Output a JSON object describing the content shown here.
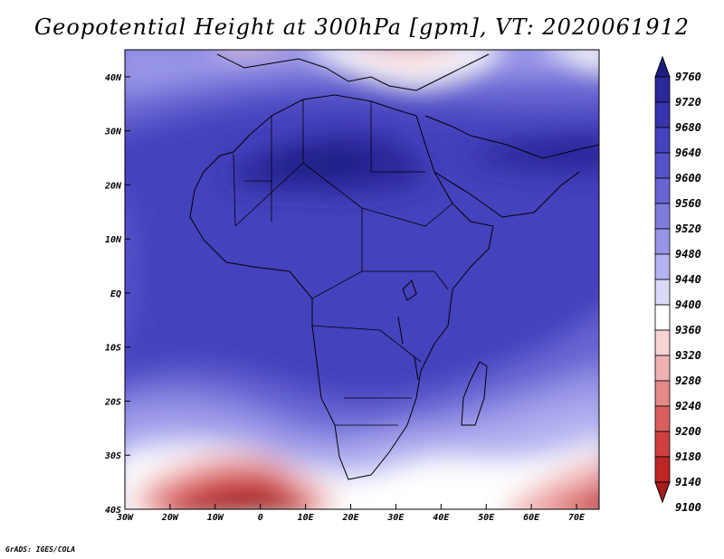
{
  "title": "Geopotential Height at 300hPa [gpm], VT: 2020061912",
  "credit": "GrADS: IGES/COLA",
  "map": {
    "projection": "latlon",
    "lon_range": [
      -30,
      75
    ],
    "lat_range": [
      -40,
      45
    ],
    "lon_ticks": [
      "30W",
      "20W",
      "10W",
      "0",
      "10E",
      "20E",
      "30E",
      "40E",
      "50E",
      "60E",
      "70E"
    ],
    "lat_ticks": [
      "40N",
      "30N",
      "20N",
      "10N",
      "EQ",
      "10S",
      "20S",
      "30S",
      "40S"
    ],
    "field": "geopotential height at 300hPa",
    "units": "gpm",
    "valid_time": "2020061912"
  },
  "colorbar": {
    "levels": [
      "9760",
      "9720",
      "9680",
      "9640",
      "9600",
      "9560",
      "9520",
      "9480",
      "9440",
      "9400",
      "9360",
      "9320",
      "9280",
      "9240",
      "9200",
      "9180",
      "9140",
      "9100"
    ],
    "colors": [
      "#1e1b82",
      "#2b2899",
      "#3734ad",
      "#4542bd",
      "#5552c9",
      "#6865d3",
      "#7f7cde",
      "#9895e7",
      "#b4b2f0",
      "#dad9f8",
      "#ffffff",
      "#f7d3d3",
      "#efb0b0",
      "#e58888",
      "#db5f5f",
      "#cf3f3f",
      "#be2626",
      "#a81b1b"
    ]
  }
}
